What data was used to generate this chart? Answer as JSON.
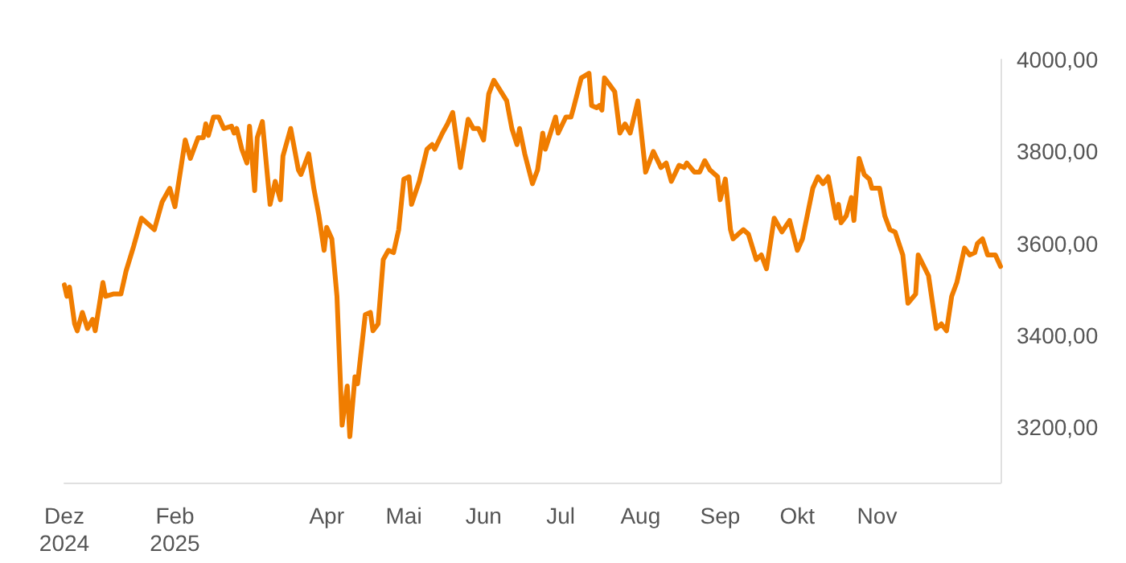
{
  "chart_data": {
    "type": "line",
    "grid": false,
    "marker": "none",
    "line_style": "solid",
    "xlim": [
      "2024-12-20",
      "2025-12-19"
    ],
    "xticks": [
      {
        "value": "2024-12-20",
        "label": "Dez\n2024"
      },
      {
        "value": "2025-02-01",
        "label": "Feb\n2025"
      },
      {
        "value": "2025-04-01",
        "label": "Apr"
      },
      {
        "value": "2025-05-01",
        "label": "Mai"
      },
      {
        "value": "2025-06-01",
        "label": "Jun"
      },
      {
        "value": "2025-07-01",
        "label": "Jul"
      },
      {
        "value": "2025-08-01",
        "label": "Aug"
      },
      {
        "value": "2025-09-01",
        "label": "Sep"
      },
      {
        "value": "2025-10-01",
        "label": "Okt"
      },
      {
        "value": "2025-11-01",
        "label": "Nov"
      }
    ],
    "ylim": [
      3080,
      4000
    ],
    "yticks": [
      {
        "value": 3200,
        "label": "3200,00"
      },
      {
        "value": 3400,
        "label": "3400,00"
      },
      {
        "value": 3600,
        "label": "3600,00"
      },
      {
        "value": 3800,
        "label": "3800,00"
      },
      {
        "value": 4000,
        "label": "4000,00"
      }
    ],
    "x": [
      "2024-12-20",
      "2024-12-21",
      "2024-12-22",
      "2024-12-24",
      "2024-12-25",
      "2024-12-27",
      "2024-12-29",
      "2024-12-31",
      "2025-01-01",
      "2025-01-04",
      "2025-01-05",
      "2025-01-08",
      "2025-01-11",
      "2025-01-13",
      "2025-01-16",
      "2025-01-19",
      "2025-01-24",
      "2025-01-27",
      "2025-01-30",
      "2025-02-01",
      "2025-02-05",
      "2025-02-07",
      "2025-02-10",
      "2025-02-12",
      "2025-02-13",
      "2025-02-14",
      "2025-02-16",
      "2025-02-18",
      "2025-02-20",
      "2025-02-23",
      "2025-02-24",
      "2025-02-25",
      "2025-02-27",
      "2025-03-01",
      "2025-03-02",
      "2025-03-04",
      "2025-03-05",
      "2025-03-07",
      "2025-03-10",
      "2025-03-12",
      "2025-03-14",
      "2025-03-15",
      "2025-03-18",
      "2025-03-21",
      "2025-03-22",
      "2025-03-25",
      "2025-03-27",
      "2025-03-29",
      "2025-03-31",
      "2025-04-01",
      "2025-04-03",
      "2025-04-05",
      "2025-04-07",
      "2025-04-09",
      "2025-04-10",
      "2025-04-12",
      "2025-04-13",
      "2025-04-16",
      "2025-04-18",
      "2025-04-19",
      "2025-04-21",
      "2025-04-23",
      "2025-04-25",
      "2025-04-27",
      "2025-04-29",
      "2025-05-01",
      "2025-05-03",
      "2025-05-04",
      "2025-05-07",
      "2025-05-10",
      "2025-05-12",
      "2025-05-13",
      "2025-05-16",
      "2025-05-18",
      "2025-05-20",
      "2025-05-23",
      "2025-05-26",
      "2025-05-28",
      "2025-05-30",
      "2025-06-01",
      "2025-06-03",
      "2025-06-05",
      "2025-06-10",
      "2025-06-12",
      "2025-06-14",
      "2025-06-15",
      "2025-06-17",
      "2025-06-20",
      "2025-06-22",
      "2025-06-24",
      "2025-06-25",
      "2025-06-29",
      "2025-06-30",
      "2025-07-03",
      "2025-07-05",
      "2025-07-06",
      "2025-07-09",
      "2025-07-12",
      "2025-07-13",
      "2025-07-15",
      "2025-07-16",
      "2025-07-17",
      "2025-07-18",
      "2025-07-22",
      "2025-07-24",
      "2025-07-26",
      "2025-07-28",
      "2025-07-31",
      "2025-08-03",
      "2025-08-06",
      "2025-08-09",
      "2025-08-11",
      "2025-08-13",
      "2025-08-16",
      "2025-08-18",
      "2025-08-19",
      "2025-08-22",
      "2025-08-24",
      "2025-08-26",
      "2025-08-28",
      "2025-08-31",
      "2025-09-01",
      "2025-09-03",
      "2025-09-05",
      "2025-09-06",
      "2025-09-10",
      "2025-09-12",
      "2025-09-15",
      "2025-09-17",
      "2025-09-19",
      "2025-09-22",
      "2025-09-25",
      "2025-09-28",
      "2025-10-01",
      "2025-10-03",
      "2025-10-07",
      "2025-10-09",
      "2025-10-11",
      "2025-10-13",
      "2025-10-16",
      "2025-10-17",
      "2025-10-18",
      "2025-10-20",
      "2025-10-22",
      "2025-10-23",
      "2025-10-25",
      "2025-10-27",
      "2025-10-29",
      "2025-10-30",
      "2025-11-02",
      "2025-11-04",
      "2025-11-06",
      "2025-11-08",
      "2025-11-11",
      "2025-11-13",
      "2025-11-16",
      "2025-11-17",
      "2025-11-21",
      "2025-11-24",
      "2025-11-26",
      "2025-11-28",
      "2025-11-30",
      "2025-12-02",
      "2025-12-05",
      "2025-12-07",
      "2025-12-09",
      "2025-12-10",
      "2025-12-12",
      "2025-12-14",
      "2025-12-17",
      "2025-12-19"
    ],
    "series": [
      {
        "color": "#f07d00",
        "values": [
          3510,
          3485,
          3505,
          3425,
          3410,
          3450,
          3415,
          3435,
          3410,
          3515,
          3485,
          3490,
          3490,
          3540,
          3595,
          3655,
          3630,
          3690,
          3720,
          3680,
          3825,
          3785,
          3830,
          3830,
          3860,
          3835,
          3875,
          3875,
          3850,
          3855,
          3840,
          3850,
          3805,
          3775,
          3855,
          3715,
          3830,
          3865,
          3685,
          3735,
          3695,
          3790,
          3850,
          3760,
          3750,
          3795,
          3720,
          3660,
          3585,
          3635,
          3610,
          3485,
          3205,
          3290,
          3180,
          3310,
          3295,
          3445,
          3450,
          3410,
          3425,
          3565,
          3585,
          3580,
          3630,
          3740,
          3745,
          3685,
          3735,
          3805,
          3815,
          3805,
          3840,
          3860,
          3885,
          3765,
          3870,
          3850,
          3850,
          3825,
          3925,
          3955,
          3910,
          3850,
          3815,
          3850,
          3795,
          3730,
          3760,
          3840,
          3805,
          3875,
          3840,
          3875,
          3875,
          3895,
          3960,
          3970,
          3900,
          3895,
          3900,
          3890,
          3960,
          3930,
          3840,
          3860,
          3840,
          3910,
          3755,
          3800,
          3765,
          3775,
          3735,
          3770,
          3765,
          3775,
          3755,
          3755,
          3780,
          3760,
          3745,
          3695,
          3740,
          3630,
          3610,
          3630,
          3620,
          3565,
          3575,
          3545,
          3655,
          3625,
          3650,
          3585,
          3610,
          3720,
          3745,
          3730,
          3745,
          3655,
          3685,
          3645,
          3660,
          3700,
          3650,
          3785,
          3750,
          3740,
          3720,
          3720,
          3660,
          3630,
          3625,
          3575,
          3470,
          3490,
          3575,
          3530,
          3415,
          3425,
          3410,
          3485,
          3515,
          3590,
          3575,
          3580,
          3600,
          3610,
          3575,
          3575,
          3550
        ]
      }
    ]
  }
}
